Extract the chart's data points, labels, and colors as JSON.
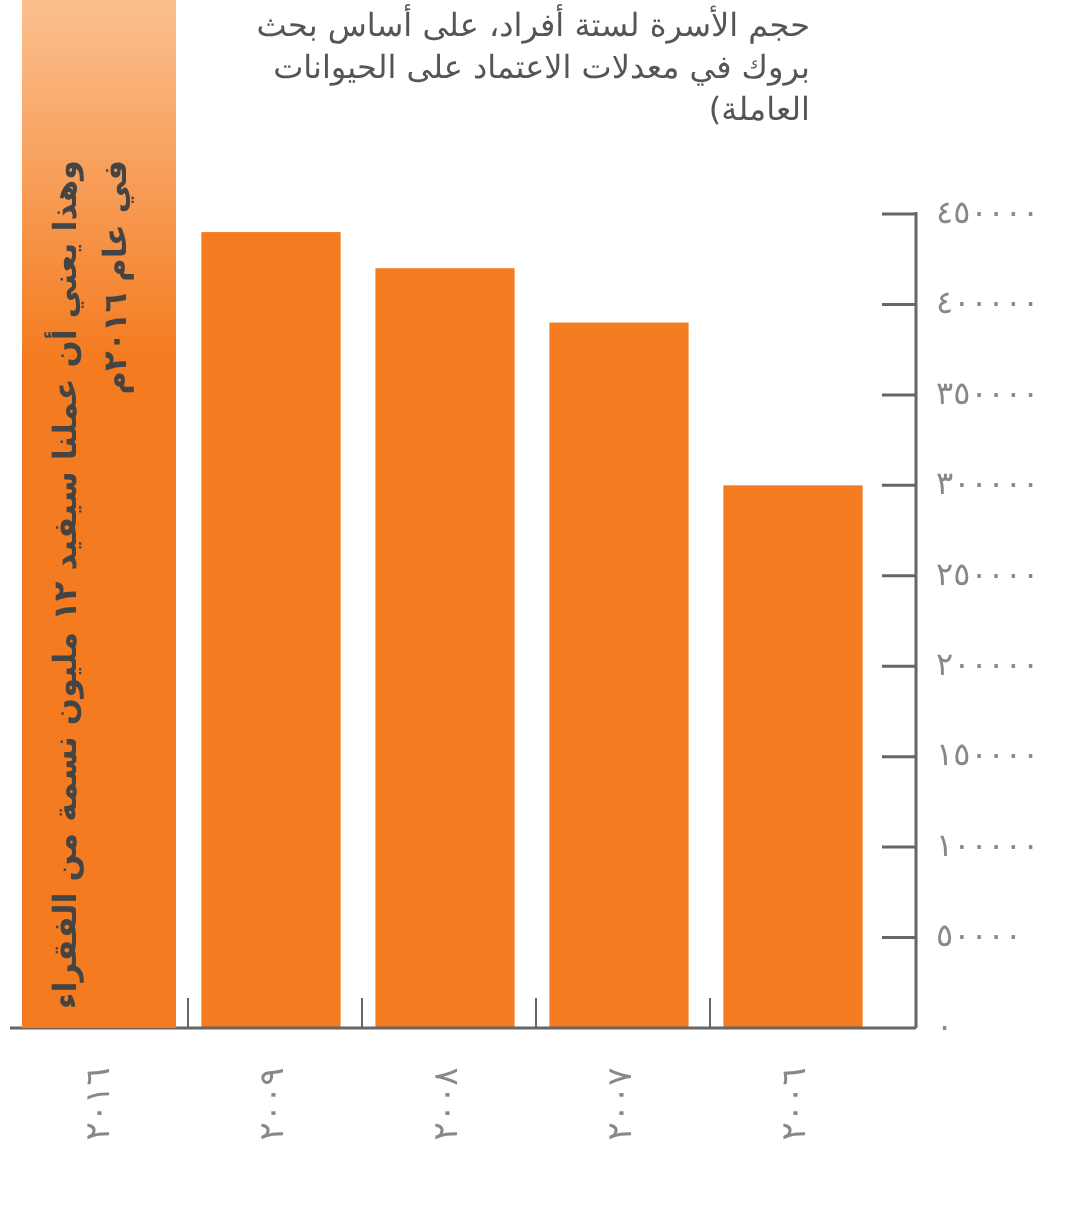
{
  "chart_data": {
    "type": "bar",
    "title": "حجم الأسرة لستة أفراد، على أساس بحث بروك في معدلات الاعتماد على الحيوانات العاملة)",
    "categories": [
      "٢٠١٦",
      "٢٠٠٩",
      "٢٠٠٨",
      "٢٠٠٧",
      "٢٠٠٦"
    ],
    "values": [
      null,
      440000,
      420000,
      390000,
      300000
    ],
    "color": "#f47b20",
    "ylim": [
      0,
      450000
    ],
    "yticks": [
      {
        "value": 0,
        "label": "٠"
      },
      {
        "value": 50000,
        "label": "٥٠٠٠٠"
      },
      {
        "value": 100000,
        "label": "١٠٠٠٠٠"
      },
      {
        "value": 150000,
        "label": "١٥٠٠٠٠"
      },
      {
        "value": 200000,
        "label": "٢٠٠٠٠٠"
      },
      {
        "value": 250000,
        "label": "٢٥٠٠٠٠"
      },
      {
        "value": 300000,
        "label": "٣٠٠٠٠٠"
      },
      {
        "value": 350000,
        "label": "٣٥٠٠٠٠"
      },
      {
        "value": 400000,
        "label": "٤٠٠٠٠٠"
      },
      {
        "value": 450000,
        "label": "٤٥٠٠٠٠"
      }
    ],
    "bands": [
      {
        "axis": "x",
        "from": "٢٠١٦",
        "to": "٢٠١٦",
        "color": "#f47b20",
        "label": "وهذا يعني أن عملنا سيفيد ١٢ مليون نسمة من الفقراء في عام ٢٠١٦م"
      }
    ],
    "grid": false
  }
}
